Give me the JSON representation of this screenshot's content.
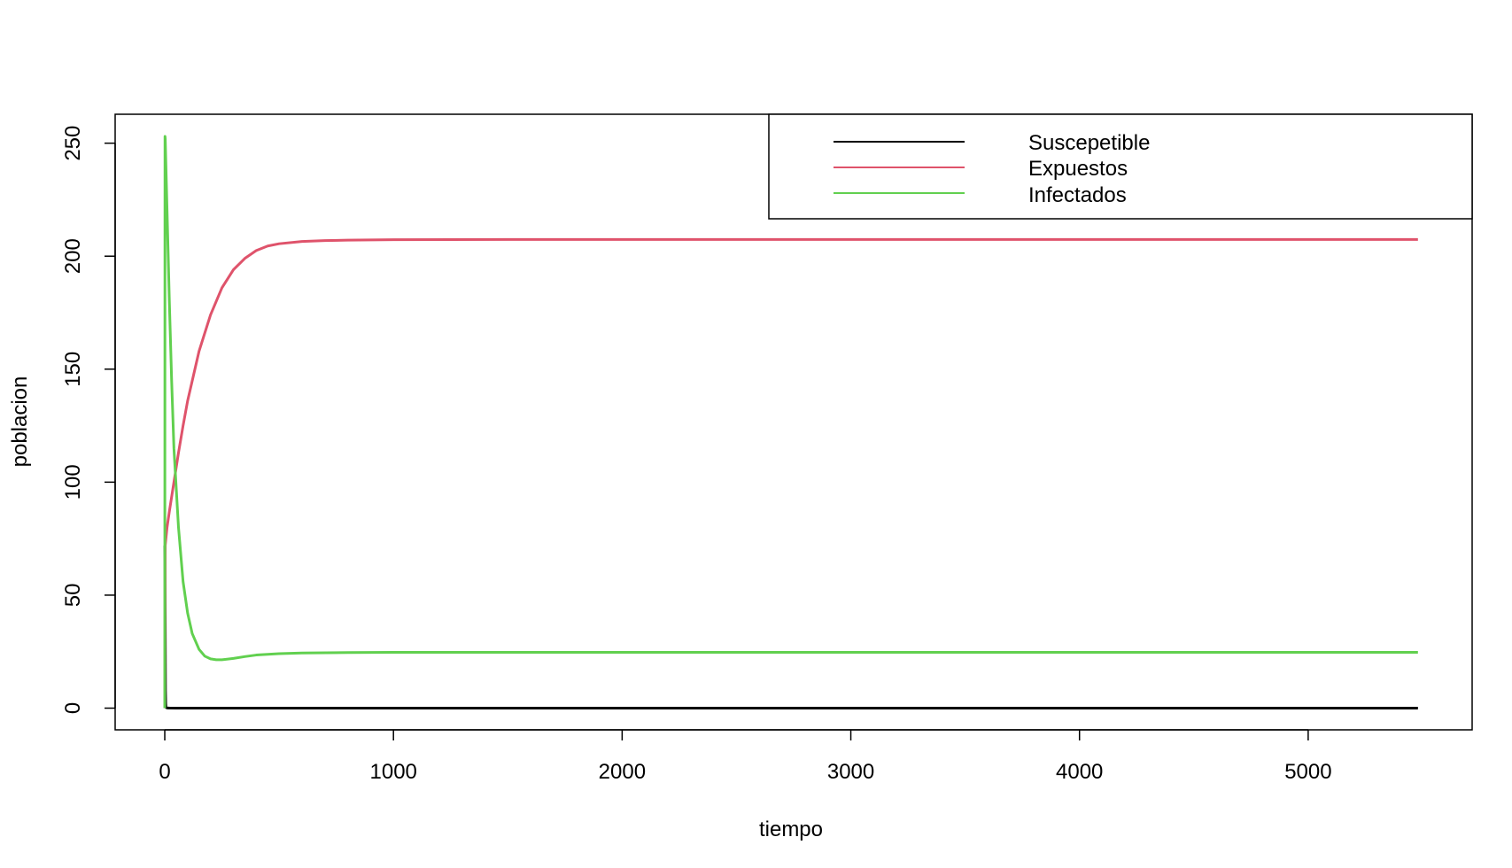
{
  "chart_data": {
    "type": "line",
    "title": "",
    "xlabel": "tiempo",
    "ylabel": "poblacion",
    "xlim": [
      -217,
      5717
    ],
    "ylim": [
      -9.6,
      262.8
    ],
    "xticks": [
      0,
      1000,
      2000,
      3000,
      4000,
      5000
    ],
    "yticks": [
      0,
      50,
      100,
      150,
      200,
      250
    ],
    "grid": false,
    "legend_position": "top-right",
    "colors": {
      "axis": "#000000",
      "background": "#ffffff"
    },
    "series": [
      {
        "name": "Suscepetible",
        "color": "#000000",
        "x": [
          0,
          1,
          2,
          3,
          4,
          5,
          7,
          10,
          15,
          20,
          50,
          100,
          500,
          1000,
          2000,
          3000,
          4000,
          5000,
          5480
        ],
        "y": [
          72,
          65,
          40,
          8,
          2,
          0.5,
          0.2,
          0.1,
          0.05,
          0.03,
          0.02,
          0.02,
          0.02,
          0.02,
          0.02,
          0.02,
          0.02,
          0.02,
          0.02
        ]
      },
      {
        "name": "Expuestos",
        "color": "#DF536B",
        "x": [
          0,
          1,
          2,
          5,
          10,
          20,
          40,
          60,
          80,
          100,
          150,
          200,
          250,
          300,
          350,
          400,
          450,
          500,
          600,
          700,
          800,
          1000,
          1500,
          2000,
          3000,
          4000,
          5000,
          5480
        ],
        "y": [
          0,
          40,
          72,
          75,
          80,
          87,
          100,
          113,
          125,
          136,
          158,
          174,
          186,
          194,
          199,
          202.5,
          204.5,
          205.5,
          206.5,
          206.9,
          207.1,
          207.3,
          207.4,
          207.4,
          207.4,
          207.4,
          207.4,
          207.4
        ]
      },
      {
        "name": "Infectados",
        "color": "#61D04F",
        "x": [
          0,
          1,
          2,
          5,
          10,
          20,
          30,
          40,
          60,
          80,
          100,
          120,
          150,
          175,
          200,
          225,
          250,
          300,
          350,
          400,
          500,
          600,
          800,
          1000,
          2000,
          3000,
          4000,
          5000,
          5480
        ],
        "y": [
          0,
          253,
          252,
          240,
          220,
          180,
          145,
          115,
          80,
          56,
          42,
          33,
          26,
          23,
          21.8,
          21.4,
          21.4,
          22,
          22.8,
          23.5,
          24.1,
          24.4,
          24.6,
          24.7,
          24.7,
          24.7,
          24.7,
          24.7,
          24.7
        ]
      }
    ]
  }
}
